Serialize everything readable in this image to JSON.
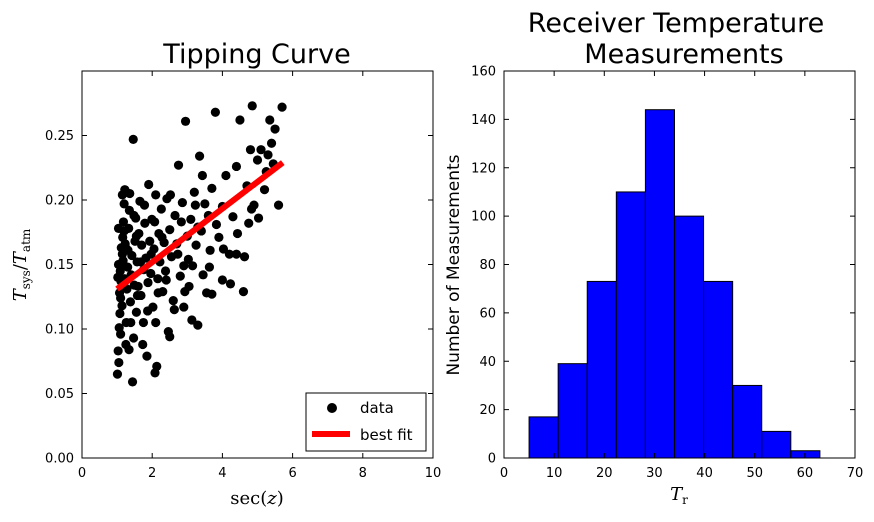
{
  "chart_data": [
    {
      "type": "scatter",
      "title": "Tipping Curve",
      "xlabel": "sec(z)",
      "ylabel": "T_sys/T_atm",
      "xlim": [
        0,
        10
      ],
      "ylim": [
        0,
        0.3
      ],
      "xticks": [
        "0",
        "2",
        "4",
        "6",
        "8",
        "10"
      ],
      "yticks": [
        "0.00",
        "0.05",
        "0.10",
        "0.15",
        "0.20",
        "0.25"
      ],
      "legend_position": "lower-right",
      "grid": false,
      "series": [
        {
          "name": "data",
          "color": "#000000",
          "points": [
            [
              1.01,
              0.065
            ],
            [
              1.03,
              0.083
            ],
            [
              1.05,
              0.074
            ],
            [
              1.06,
              0.101
            ],
            [
              1.08,
              0.112
            ],
            [
              1.1,
              0.124
            ],
            [
              1.11,
              0.137
            ],
            [
              1.13,
              0.149
            ],
            [
              1.15,
              0.158
            ],
            [
              1.16,
              0.171
            ],
            [
              1.18,
              0.183
            ],
            [
              1.2,
              0.197
            ],
            [
              1.22,
              0.208
            ],
            [
              1.02,
              0.14
            ],
            [
              1.04,
              0.15
            ],
            [
              1.07,
              0.128
            ],
            [
              1.09,
              0.145
            ],
            [
              1.12,
              0.163
            ],
            [
              1.14,
              0.118
            ],
            [
              1.17,
              0.153
            ],
            [
              1.19,
              0.176
            ],
            [
              1.21,
              0.139
            ],
            [
              1.23,
              0.166
            ],
            [
              1.25,
              0.088
            ],
            [
              1.26,
              0.105
            ],
            [
              1.28,
              0.131
            ],
            [
              1.3,
              0.148
            ],
            [
              1.31,
              0.161
            ],
            [
              1.33,
              0.178
            ],
            [
              1.35,
              0.192
            ],
            [
              1.36,
              0.205
            ],
            [
              1.38,
              0.121
            ],
            [
              1.4,
              0.142
            ],
            [
              1.42,
              0.157
            ],
            [
              1.44,
              0.059
            ],
            [
              1.46,
              0.247
            ],
            [
              1.47,
              0.093
            ],
            [
              1.49,
              0.134
            ],
            [
              1.51,
              0.168
            ],
            [
              1.53,
              0.186
            ],
            [
              1.55,
              0.113
            ],
            [
              1.57,
              0.152
            ],
            [
              1.6,
              0.133
            ],
            [
              1.62,
              0.174
            ],
            [
              1.65,
              0.199
            ],
            [
              1.68,
              0.126
            ],
            [
              1.7,
              0.165
            ],
            [
              1.73,
              0.088
            ],
            [
              1.76,
              0.146
            ],
            [
              1.79,
              0.182
            ],
            [
              1.82,
              0.155
            ],
            [
              1.85,
              0.079
            ],
            [
              1.88,
              0.136
            ],
            [
              1.9,
              0.212
            ],
            [
              1.93,
              0.168
            ],
            [
              1.96,
              0.143
            ],
            [
              1.99,
              0.185
            ],
            [
              2.02,
              0.117
            ],
            [
              2.05,
              0.162
            ],
            [
              2.08,
              0.066
            ],
            [
              2.1,
              0.204
            ],
            [
              2.13,
              0.071
            ],
            [
              2.16,
              0.139
            ],
            [
              2.19,
              0.174
            ],
            [
              2.22,
              0.152
            ],
            [
              2.26,
              0.193
            ],
            [
              2.3,
              0.129
            ],
            [
              2.34,
              0.167
            ],
            [
              2.38,
              0.145
            ],
            [
              2.42,
              0.201
            ],
            [
              2.46,
              0.098
            ],
            [
              2.5,
              0.177
            ],
            [
              2.55,
              0.156
            ],
            [
              2.6,
              0.122
            ],
            [
              2.65,
              0.188
            ],
            [
              2.7,
              0.166
            ],
            [
              2.75,
              0.227
            ],
            [
              2.8,
              0.141
            ],
            [
              2.86,
              0.198
            ],
            [
              2.9,
              0.117
            ],
            [
              2.95,
              0.261
            ],
            [
              3.0,
              0.172
            ],
            [
              3.05,
              0.133
            ],
            [
              3.1,
              0.185
            ],
            [
              3.15,
              0.149
            ],
            [
              3.2,
              0.206
            ],
            [
              3.25,
              0.165
            ],
            [
              3.3,
              0.103
            ],
            [
              3.35,
              0.234
            ],
            [
              3.4,
              0.176
            ],
            [
              3.45,
              0.142
            ],
            [
              3.5,
              0.197
            ],
            [
              3.55,
              0.128
            ],
            [
              3.6,
              0.188
            ],
            [
              3.65,
              0.161
            ],
            [
              3.7,
              0.209
            ],
            [
              3.8,
              0.268
            ],
            [
              3.9,
              0.171
            ],
            [
              4.0,
              0.195
            ],
            [
              4.1,
              0.219
            ],
            [
              4.2,
              0.158
            ],
            [
              4.3,
              0.187
            ],
            [
              4.4,
              0.226
            ],
            [
              4.5,
              0.262
            ],
            [
              4.6,
              0.129
            ],
            [
              4.7,
              0.211
            ],
            [
              4.8,
              0.239
            ],
            [
              4.85,
              0.273
            ],
            [
              4.9,
              0.196
            ],
            [
              5.0,
              0.231
            ],
            [
              5.1,
              0.239
            ],
            [
              5.2,
              0.208
            ],
            [
              5.3,
              0.235
            ],
            [
              5.35,
              0.262
            ],
            [
              5.4,
              0.244
            ],
            [
              5.5,
              0.255
            ],
            [
              5.6,
              0.196
            ],
            [
              5.7,
              0.272
            ],
            [
              5.45,
              0.228
            ],
            [
              5.25,
              0.222
            ],
            [
              4.75,
              0.182
            ],
            [
              4.4,
              0.158
            ],
            [
              4.0,
              0.138
            ],
            [
              3.7,
              0.127
            ],
            [
              3.3,
              0.179
            ],
            [
              2.9,
              0.149
            ],
            [
              2.5,
              0.094
            ],
            [
              2.1,
              0.105
            ],
            [
              1.75,
              0.105
            ],
            [
              1.55,
              0.172
            ],
            [
              1.34,
              0.084
            ],
            [
              1.2,
              0.176
            ],
            [
              1.1,
              0.096
            ],
            [
              1.04,
              0.178
            ],
            [
              1.15,
              0.204
            ],
            [
              1.27,
              0.162
            ],
            [
              1.39,
              0.105
            ],
            [
              1.48,
              0.188
            ],
            [
              1.58,
              0.126
            ],
            [
              1.67,
              0.152
            ],
            [
              1.78,
              0.196
            ],
            [
              1.87,
              0.114
            ],
            [
              1.97,
              0.158
            ],
            [
              2.07,
              0.183
            ],
            [
              2.17,
              0.128
            ],
            [
              2.28,
              0.171
            ],
            [
              2.4,
              0.138
            ],
            [
              2.52,
              0.204
            ],
            [
              2.63,
              0.115
            ],
            [
              2.73,
              0.158
            ],
            [
              2.83,
              0.183
            ],
            [
              2.93,
              0.129
            ],
            [
              3.03,
              0.154
            ],
            [
              3.13,
              0.107
            ],
            [
              3.23,
              0.196
            ],
            [
              3.43,
              0.219
            ],
            [
              3.63,
              0.148
            ],
            [
              3.83,
              0.181
            ],
            [
              4.03,
              0.162
            ],
            [
              4.23,
              0.135
            ],
            [
              4.43,
              0.174
            ],
            [
              4.63,
              0.156
            ],
            [
              4.83,
              0.193
            ],
            [
              5.03,
              0.186
            ]
          ]
        },
        {
          "name": "best fit",
          "color": "#ff0000",
          "line": [
            [
              1.0,
              0.131
            ],
            [
              5.72,
              0.229
            ]
          ]
        }
      ]
    },
    {
      "type": "bar",
      "title": "Receiver Temperature Measurements",
      "title_lines": [
        "Receiver Temperature",
        "Measurements"
      ],
      "xlabel": "T_r",
      "ylabel": "Number of Measurements",
      "xlim": [
        0,
        70
      ],
      "ylim": [
        0,
        160
      ],
      "xticks": [
        "0",
        "10",
        "20",
        "30",
        "40",
        "50",
        "60",
        "70"
      ],
      "yticks": [
        "0",
        "20",
        "40",
        "60",
        "80",
        "100",
        "120",
        "140",
        "160"
      ],
      "bar_color": "#0000ff",
      "bins": [
        {
          "x0": 5.0,
          "x1": 10.8,
          "count": 17
        },
        {
          "x0": 10.8,
          "x1": 16.6,
          "count": 39
        },
        {
          "x0": 16.6,
          "x1": 22.4,
          "count": 73
        },
        {
          "x0": 22.4,
          "x1": 28.2,
          "count": 110
        },
        {
          "x0": 28.2,
          "x1": 34.0,
          "count": 144
        },
        {
          "x0": 34.0,
          "x1": 39.8,
          "count": 100
        },
        {
          "x0": 39.8,
          "x1": 45.6,
          "count": 73
        },
        {
          "x0": 45.6,
          "x1": 51.4,
          "count": 30
        },
        {
          "x0": 51.4,
          "x1": 57.2,
          "count": 11
        },
        {
          "x0": 57.2,
          "x1": 63.0,
          "count": 3
        }
      ]
    }
  ]
}
